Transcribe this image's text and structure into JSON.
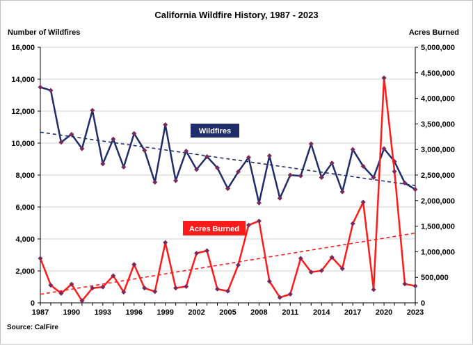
{
  "chart_data": {
    "type": "line",
    "title": "California Wildfire History, 1987 - 2023",
    "ylabel_left": "Number of Wildfires",
    "ylabel_right": "Acres Burned",
    "source": "Source: CalFire",
    "x_start": 1987,
    "x_end": 2023,
    "x_tick_labels": [
      "1987",
      "1990",
      "1993",
      "1996",
      "1999",
      "2002",
      "2005",
      "2008",
      "2011",
      "2014",
      "2017",
      "2020",
      "2023"
    ],
    "ylim_left": [
      0,
      16000
    ],
    "yticks_left": [
      "0",
      "2,000",
      "4,000",
      "6,000",
      "8,000",
      "10,000",
      "12,000",
      "14,000",
      "16,000"
    ],
    "ylim_right": [
      0,
      5000000
    ],
    "yticks_right": [
      "0",
      "500,000",
      "1,000,000",
      "1,500,000",
      "2,000,000",
      "2,500,000",
      "3,000,000",
      "3,500,000",
      "4,000,000",
      "4,500,000",
      "5,000,000"
    ],
    "grid": true,
    "trendlines": true,
    "series": [
      {
        "name": "Wildfires",
        "axis": "left",
        "color": "#1f2d6b",
        "x": [
          1987,
          1988,
          1989,
          1990,
          1991,
          1992,
          1993,
          1994,
          1995,
          1996,
          1997,
          1998,
          1999,
          2000,
          2001,
          2002,
          2003,
          2004,
          2005,
          2006,
          2007,
          2008,
          2009,
          2010,
          2011,
          2012,
          2013,
          2014,
          2015,
          2016,
          2017,
          2018,
          2019,
          2020,
          2021,
          2022,
          2023
        ],
        "values": [
          13500,
          13300,
          10050,
          10550,
          9650,
          12050,
          8700,
          10250,
          8500,
          10600,
          9550,
          7550,
          11150,
          7650,
          9500,
          8350,
          9150,
          8450,
          7150,
          8200,
          9100,
          6250,
          9200,
          6550,
          8000,
          7950,
          9950,
          7850,
          8750,
          6950,
          9600,
          8550,
          7850,
          9650,
          8850,
          7500,
          7100
        ]
      },
      {
        "name": "Acres Burned",
        "axis": "right",
        "color": "#ff1a1a",
        "x": [
          1987,
          1988,
          1989,
          1990,
          1991,
          1992,
          1993,
          1994,
          1995,
          1996,
          1997,
          1998,
          1999,
          2000,
          2001,
          2002,
          2003,
          2004,
          2005,
          2006,
          2007,
          2008,
          2009,
          2010,
          2011,
          2012,
          2013,
          2014,
          2015,
          2016,
          2017,
          2018,
          2019,
          2020,
          2021,
          2022,
          2023
        ],
        "values": [
          870000,
          345000,
          185000,
          365000,
          40000,
          290000,
          310000,
          530000,
          210000,
          750000,
          290000,
          220000,
          1180000,
          290000,
          320000,
          970000,
          1020000,
          270000,
          230000,
          740000,
          1520000,
          1600000,
          420000,
          105000,
          170000,
          870000,
          600000,
          630000,
          890000,
          670000,
          1550000,
          1970000,
          260000,
          4400000,
          2570000,
          370000,
          330000
        ]
      }
    ],
    "annotations": [
      "Wildfires",
      "Acres Burned"
    ]
  }
}
